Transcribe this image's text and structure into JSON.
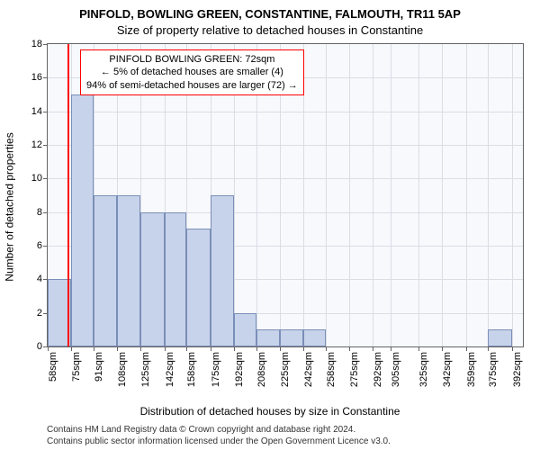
{
  "titles": {
    "line1": "PINFOLD, BOWLING GREEN, CONSTANTINE, FALMOUTH, TR11 5AP",
    "line2": "Size of property relative to detached houses in Constantine"
  },
  "axes": {
    "ylabel": "Number of detached properties",
    "xlabel": "Distribution of detached houses by size in Constantine",
    "ylim": [
      0,
      18
    ],
    "ytick_step": 2,
    "y_ticks": [
      0,
      2,
      4,
      6,
      8,
      10,
      12,
      14,
      16,
      18
    ],
    "x_tick_labels": [
      "58sqm",
      "75sqm",
      "91sqm",
      "108sqm",
      "125sqm",
      "142sqm",
      "158sqm",
      "175sqm",
      "192sqm",
      "208sqm",
      "225sqm",
      "242sqm",
      "258sqm",
      "275sqm",
      "292sqm",
      "305sqm",
      "325sqm",
      "342sqm",
      "359sqm",
      "375sqm",
      "392sqm"
    ],
    "x_range_sqm": [
      58,
      400
    ]
  },
  "chart": {
    "type": "histogram",
    "plot_bg": "#f7f9fc",
    "grid_color": "#d9dde4",
    "border_color": "#646464",
    "bar_fill": "#c7d3ea",
    "bar_border": "#7a8fb8",
    "marker_color": "#ff0000",
    "marker_x_sqm": 72,
    "bins": [
      {
        "start": 58,
        "end": 75,
        "count": 4
      },
      {
        "start": 75,
        "end": 91,
        "count": 15
      },
      {
        "start": 91,
        "end": 108,
        "count": 9
      },
      {
        "start": 108,
        "end": 125,
        "count": 9
      },
      {
        "start": 125,
        "end": 142,
        "count": 8
      },
      {
        "start": 142,
        "end": 158,
        "count": 8
      },
      {
        "start": 158,
        "end": 175,
        "count": 7
      },
      {
        "start": 175,
        "end": 192,
        "count": 9
      },
      {
        "start": 192,
        "end": 208,
        "count": 2
      },
      {
        "start": 208,
        "end": 225,
        "count": 1
      },
      {
        "start": 225,
        "end": 242,
        "count": 1
      },
      {
        "start": 242,
        "end": 258,
        "count": 1
      },
      {
        "start": 258,
        "end": 275,
        "count": 0
      },
      {
        "start": 275,
        "end": 292,
        "count": 0
      },
      {
        "start": 292,
        "end": 305,
        "count": 0
      },
      {
        "start": 305,
        "end": 325,
        "count": 0
      },
      {
        "start": 325,
        "end": 342,
        "count": 0
      },
      {
        "start": 342,
        "end": 359,
        "count": 0
      },
      {
        "start": 359,
        "end": 375,
        "count": 0
      },
      {
        "start": 375,
        "end": 392,
        "count": 1
      }
    ]
  },
  "info_box": {
    "line1": "PINFOLD BOWLING GREEN: 72sqm",
    "line2": "← 5% of detached houses are smaller (4)",
    "line3": "94% of semi-detached houses are larger (72) →"
  },
  "attribution": {
    "line1": "Contains HM Land Registry data © Crown copyright and database right 2024.",
    "line2": "Contains public sector information licensed under the Open Government Licence v3.0."
  }
}
